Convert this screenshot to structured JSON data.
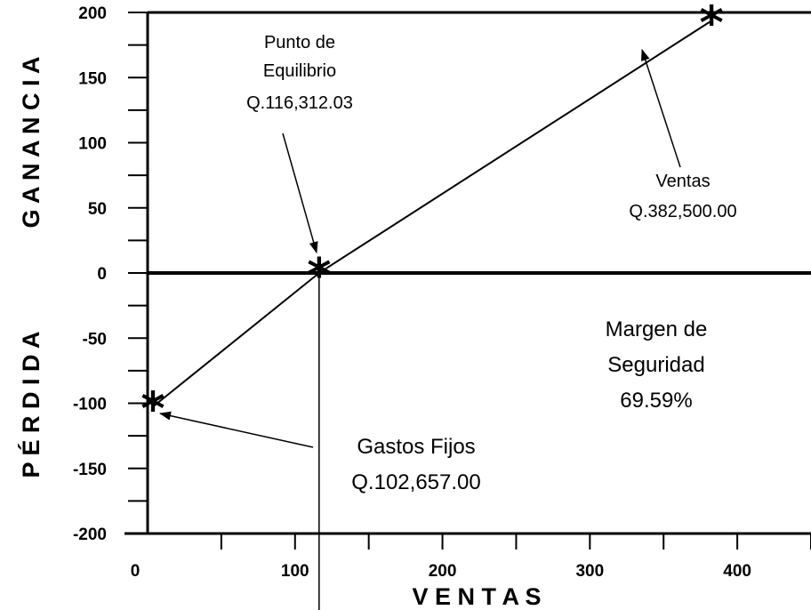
{
  "chart_data": {
    "type": "line",
    "xlabel": "V E N T A S",
    "ylabel_top": "G A N A N C I A",
    "ylabel_bottom": "P É R D I D A",
    "xlim": [
      0,
      450
    ],
    "ylim": [
      -200,
      200
    ],
    "x_ticks": [
      0,
      100,
      200,
      300,
      400
    ],
    "y_ticks": [
      200,
      150,
      100,
      50,
      0,
      -50,
      -100,
      -150,
      -200
    ],
    "series": [
      {
        "x": [
          0,
          116.31,
          382.5
        ],
        "y": [
          -102.66,
          0,
          193.6
        ]
      }
    ],
    "points": [
      {
        "x": 0,
        "y": -102.66
      },
      {
        "x": 116.31,
        "y": 0
      },
      {
        "x": 382.5,
        "y": 193.6
      }
    ],
    "annotations": {
      "break_even": [
        "Punto de",
        "Equilibrio",
        "Q.116,312.03"
      ],
      "sales": [
        "Ventas",
        "Q.382,500.00"
      ],
      "fixed_costs": [
        "Gastos Fijos",
        "Q.102,657.00"
      ],
      "safety_margin": [
        "Margen de",
        "Seguridad",
        "69.59%"
      ]
    }
  }
}
